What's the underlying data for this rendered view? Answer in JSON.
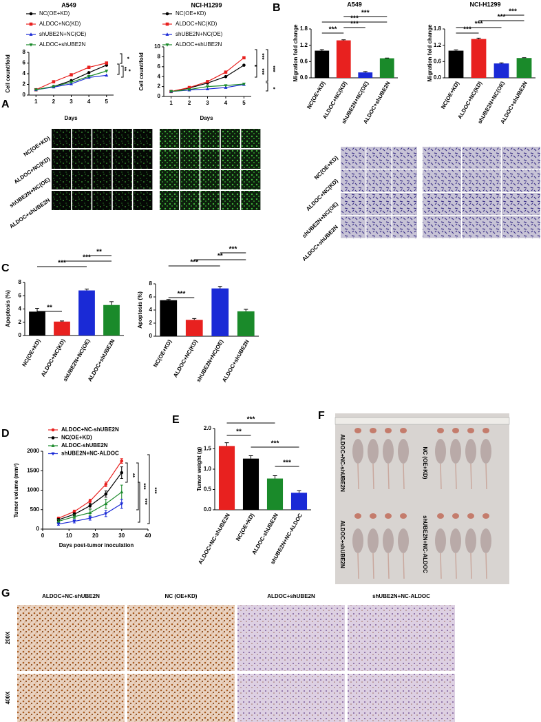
{
  "panel_labels": [
    "A",
    "B",
    "C",
    "D",
    "E",
    "F",
    "G"
  ],
  "chart_data": [
    {
      "type": "line",
      "title": "A549",
      "x_label": "Days",
      "y_label": "Cell count/fold",
      "x": [
        1,
        2,
        3,
        4,
        5
      ],
      "xlim": [
        0.6,
        5.4
      ],
      "xticks": [
        1,
        2,
        3,
        4,
        5
      ],
      "ylim": [
        0,
        8
      ],
      "yticks": [
        0,
        2,
        4,
        6,
        8
      ],
      "series": [
        {
          "name": "NC(OE+KD)",
          "color": "#000000",
          "marker": "circle",
          "values": [
            1,
            1.6,
            2.7,
            4.2,
            5.6
          ]
        },
        {
          "name": "ALDOC+NC(KD)",
          "color": "#e8211f",
          "marker": "square",
          "values": [
            1,
            2.5,
            3.8,
            5.2,
            6.0
          ]
        },
        {
          "name": "shUBE2N+NC(OE)",
          "color": "#1a2ad6",
          "marker": "triangle-up",
          "values": [
            1,
            1.5,
            2.1,
            3.3,
            3.7
          ]
        },
        {
          "name": "ALDOC+shUBE2N",
          "color": "#1a8a2a",
          "marker": "triangle-down",
          "values": [
            1,
            1.6,
            2.4,
            3.5,
            4.5
          ]
        }
      ],
      "legend": "upper-left",
      "annotations": [
        "*",
        "**",
        "*"
      ]
    },
    {
      "type": "line",
      "title": "NCI-H1299",
      "x_label": "Days",
      "y_label": "Cell count/fold",
      "x": [
        1,
        2,
        3,
        4,
        5
      ],
      "xlim": [
        0.6,
        5.4
      ],
      "xticks": [
        1,
        2,
        3,
        4,
        5
      ],
      "ylim": [
        0,
        10
      ],
      "yticks": [
        0,
        2,
        4,
        6,
        8,
        10
      ],
      "series": [
        {
          "name": "NC(OE+KD)",
          "color": "#000000",
          "marker": "circle",
          "values": [
            1,
            1.7,
            2.7,
            4.0,
            6.3
          ]
        },
        {
          "name": "ALDOC+NC(KD)",
          "color": "#e8211f",
          "marker": "square",
          "values": [
            1,
            1.8,
            3.0,
            4.9,
            7.8
          ]
        },
        {
          "name": "shUBE2N+NC(OE)",
          "color": "#1a2ad6",
          "marker": "triangle-up",
          "values": [
            1,
            1.3,
            1.5,
            1.8,
            2.4
          ]
        },
        {
          "name": "ALDOC+shUBE2N",
          "color": "#1a8a2a",
          "marker": "triangle-down",
          "values": [
            1,
            1.4,
            2.0,
            2.2,
            2.5
          ]
        }
      ],
      "legend": "upper-left",
      "annotations": [
        "***",
        "***",
        "***",
        "*"
      ]
    },
    {
      "type": "bar",
      "title": "A549",
      "y_label": "Migration fold change",
      "categories": [
        "NC(OE+KD)",
        "ALDOC+NC(KD)",
        "shUBE2N+NC(OE)",
        "ALDOC+shUBE2N"
      ],
      "values": [
        1.0,
        1.38,
        0.2,
        0.72
      ],
      "errors": [
        0.04,
        0.02,
        0.03,
        0.01
      ],
      "colors": [
        "#000000",
        "#e8211f",
        "#1a2ad6",
        "#1a8a2a"
      ],
      "ylim": [
        0,
        1.8
      ],
      "yticks": [
        {
          "value": 0,
          "label": "0.0"
        },
        0.6,
        1.2,
        1.8
      ],
      "annotations": [
        "***",
        "***",
        "***",
        "***"
      ]
    },
    {
      "type": "bar",
      "title": "NCI-H1299",
      "y_label": "Migration fold change",
      "categories": [
        "NC(OE+KD)",
        "ALDOC+NC(KD)",
        "shUBE2N+NC(OE)",
        "ALDOC+shUBE2N"
      ],
      "values": [
        1.0,
        1.43,
        0.53,
        0.73
      ],
      "errors": [
        0.03,
        0.03,
        0.02,
        0.01
      ],
      "colors": [
        "#000000",
        "#e8211f",
        "#1a2ad6",
        "#1a8a2a"
      ],
      "ylim": [
        0,
        1.8
      ],
      "yticks": [
        {
          "value": 0,
          "label": "0.0"
        },
        0.6,
        1.2,
        1.8
      ],
      "annotations": [
        "***",
        "***",
        "***",
        "***"
      ]
    },
    {
      "type": "bar",
      "y_label": "Apoptosis (%)",
      "categories": [
        "NC(OE+KD)",
        "ALDOC+NC(KD)",
        "shUBE2N+NC(OE)",
        "ALDOC+shUBE2N"
      ],
      "values": [
        3.6,
        2.1,
        6.8,
        4.6
      ],
      "errors": [
        0.5,
        0.1,
        0.2,
        0.5
      ],
      "colors": [
        "#000000",
        "#e8211f",
        "#1a2ad6",
        "#1a8a2a"
      ],
      "ylim": [
        0,
        8
      ],
      "yticks": [
        0,
        2,
        4,
        6,
        8
      ],
      "annotations": [
        "**",
        "***",
        "***",
        "**"
      ]
    },
    {
      "type": "bar",
      "y_label": "Apoptosis (%)",
      "categories": [
        "NC(OE+KD)",
        "ALDOC+NC(KD)",
        "shUBE2N+NC(OE)",
        "ALDOC+shUBE2N"
      ],
      "values": [
        5.5,
        2.5,
        7.3,
        3.8
      ],
      "errors": [
        0.1,
        0.2,
        0.3,
        0.3
      ],
      "colors": [
        "#000000",
        "#e8211f",
        "#1a2ad6",
        "#1a8a2a"
      ],
      "ylim": [
        0,
        8
      ],
      "yticks": [
        0,
        2,
        4,
        6,
        8
      ],
      "annotations": [
        "***",
        "**",
        "***",
        "***"
      ]
    },
    {
      "type": "line",
      "x_label": "Days post-tumor inoculation",
      "y_label": "Tumor volume (mm³)",
      "x": [
        6,
        12,
        18,
        24,
        30
      ],
      "xlim": [
        0,
        40
      ],
      "xticks": [
        0,
        10,
        20,
        30,
        40
      ],
      "ylim": [
        0,
        2000
      ],
      "yticks": [
        0,
        500,
        1000,
        1500,
        2000
      ],
      "series": [
        {
          "name": "ALDOC+NC-shUBE2N",
          "color": "#e8211f",
          "marker": "circle",
          "values": [
            280,
            450,
            720,
            1150,
            1750
          ],
          "errors": [
            30,
            40,
            50,
            60,
            60
          ]
        },
        {
          "name": "NC(OE+KD)",
          "color": "#000000",
          "marker": "circle",
          "values": [
            240,
            380,
            600,
            900,
            1450
          ],
          "errors": [
            30,
            40,
            60,
            80,
            150
          ]
        },
        {
          "name": "ALDOC-shUBE2N",
          "color": "#1a8a2a",
          "marker": "triangle-up",
          "values": [
            200,
            320,
            420,
            650,
            950
          ],
          "errors": [
            40,
            50,
            80,
            120,
            180
          ]
        },
        {
          "name": "shUBE2N+NC-ALDOC",
          "color": "#1a2ad6",
          "marker": "triangle-down",
          "values": [
            130,
            200,
            280,
            400,
            650
          ],
          "errors": [
            30,
            40,
            50,
            80,
            120
          ]
        }
      ],
      "legend": "upper-left",
      "annotations": [
        "**",
        "***",
        "***",
        "***"
      ]
    },
    {
      "type": "bar",
      "y_label": "Tumor weight (g)",
      "categories": [
        "ALDOC+NC-shUBE2N",
        "NC(OE+KD)",
        "ALDOC-shUBE2N",
        "shUBE2N+NC-ALDOC"
      ],
      "values": [
        1.57,
        1.26,
        0.77,
        0.42
      ],
      "errors": [
        0.08,
        0.07,
        0.07,
        0.05
      ],
      "colors": [
        "#e8211f",
        "#000000",
        "#1a8a2a",
        "#1a2ad6"
      ],
      "ylim": [
        0,
        2.0
      ],
      "yticks": [
        {
          "value": 0,
          "label": "0.0"
        },
        0.5,
        {
          "value": 1.0,
          "label": "1.0"
        },
        1.5,
        {
          "value": 2.0,
          "label": "2.0"
        }
      ],
      "annotations": [
        "***",
        "**",
        "***",
        "***"
      ]
    }
  ],
  "fluorescence": {
    "row_labels": [
      "NC(OE+KD)",
      "ALDOC+NC(KD)",
      "shUBE2N+NC(OE)",
      "ALDOC+shUBE2N"
    ]
  },
  "transwell": {
    "row_labels": [
      "NC(OE+KD)",
      "ALDOC+NC(KD)",
      "shUBE2N+NC(OE)",
      "ALDOC+shUBE2N"
    ]
  },
  "tumor_photo": {
    "labels": [
      "ALDOC+NC-shUBE2N",
      "NC (OE+KD)",
      "ALDOC+shUBE2N",
      "shUBE2N+NC-ALDOC"
    ]
  },
  "ihc": {
    "columns": [
      "ALDOC+NC-shUBE2N",
      "NC (OE+KD)",
      "ALDOC+shUBE2N",
      "shUBE2N+NC-ALDOC"
    ],
    "rows": [
      "200X",
      "400X"
    ]
  }
}
